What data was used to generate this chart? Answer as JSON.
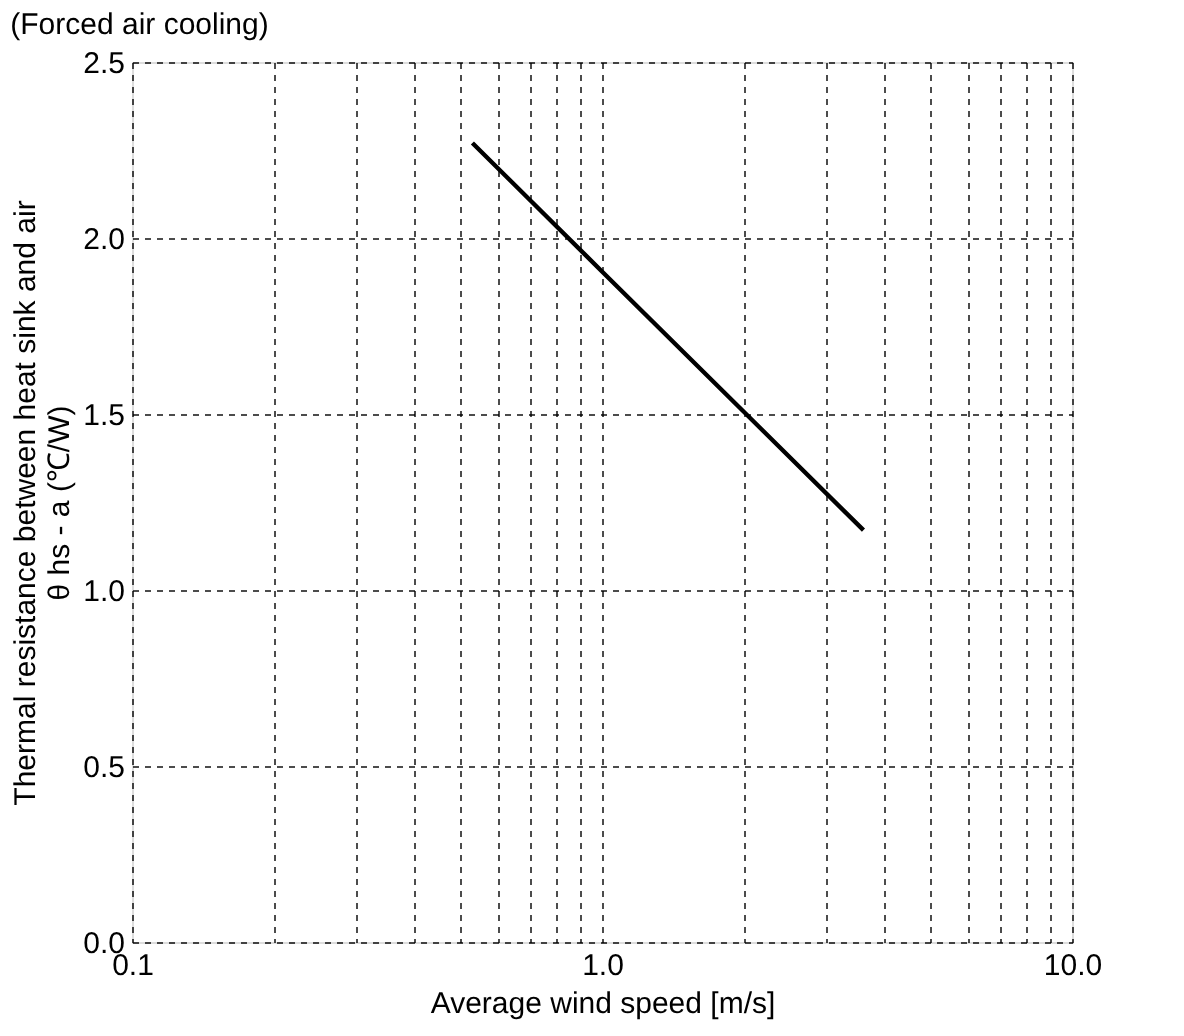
{
  "chart_data": {
    "type": "line",
    "title": "(Forced air cooling)",
    "xlabel": "Average wind speed [m/s]",
    "ylabel": "Thermal resistance between heat sink and air\nθ hs - a (℃/W)",
    "x": [
      0.53,
      1.0,
      3.6
    ],
    "series": [
      {
        "color": "#000000",
        "values": [
          2.27,
          1.905,
          1.17
        ]
      }
    ],
    "log": "x",
    "xlim": [
      0.1,
      10
    ],
    "ylim": [
      0,
      2.5
    ],
    "xticks": [
      {
        "value": 0.1,
        "label": "0.1"
      },
      {
        "value": 0.2,
        "label": null
      },
      {
        "value": 0.3,
        "label": null
      },
      {
        "value": 0.4,
        "label": null
      },
      {
        "value": 0.5,
        "label": null
      },
      {
        "value": 0.6,
        "label": null
      },
      {
        "value": 0.7,
        "label": null
      },
      {
        "value": 0.8,
        "label": null
      },
      {
        "value": 0.9,
        "label": null
      },
      {
        "value": 1,
        "label": "1.0"
      },
      {
        "value": 2,
        "label": null
      },
      {
        "value": 3,
        "label": null
      },
      {
        "value": 4,
        "label": null
      },
      {
        "value": 5,
        "label": null
      },
      {
        "value": 6,
        "label": null
      },
      {
        "value": 7,
        "label": null
      },
      {
        "value": 8,
        "label": null
      },
      {
        "value": 9,
        "label": null
      },
      {
        "value": 10,
        "label": "10.0"
      }
    ],
    "yticks": [
      {
        "value": 0,
        "label": "0.0"
      },
      {
        "value": 0.5,
        "label": "0.5"
      },
      {
        "value": 1,
        "label": "1.0"
      },
      {
        "value": 1.5,
        "label": "1.5"
      },
      {
        "value": 2,
        "label": "2.0"
      },
      {
        "value": 2.5,
        "label": "2.5"
      }
    ],
    "grid": true,
    "line_style": "solid",
    "marker": "none"
  }
}
